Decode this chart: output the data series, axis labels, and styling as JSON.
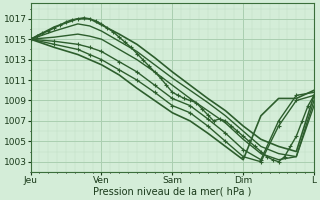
{
  "bg_color": "#d4edd8",
  "plot_bg_color": "#d4edd8",
  "grid_color_major": "#aacfb0",
  "grid_color_minor": "#c0dfc5",
  "line_color": "#2d5e2d",
  "xlabel": "Pression niveau de la mer( hPa )",
  "xlim": [
    0,
    96
  ],
  "ylim": [
    1002,
    1018.5
  ],
  "yticks": [
    1003,
    1005,
    1007,
    1009,
    1011,
    1013,
    1015,
    1017
  ],
  "xtick_labels": [
    "Jeu",
    "Ven",
    "Sam",
    "Dim",
    "L"
  ],
  "xtick_positions": [
    0,
    24,
    48,
    72,
    96
  ],
  "lines": [
    {
      "x": [
        0,
        2,
        4,
        6,
        8,
        10,
        12,
        14,
        16,
        18,
        20,
        22,
        24,
        26,
        28,
        30,
        32,
        34,
        36,
        38,
        40,
        42,
        44,
        46,
        48,
        50,
        52,
        54,
        56,
        58,
        60,
        62,
        64,
        66,
        68,
        70,
        72,
        74,
        76,
        78,
        80,
        82,
        84,
        86,
        88,
        90,
        92,
        94,
        96
      ],
      "y": [
        1015.0,
        1015.3,
        1015.6,
        1015.8,
        1016.1,
        1016.4,
        1016.7,
        1016.9,
        1017.0,
        1017.1,
        1017.0,
        1016.8,
        1016.5,
        1016.1,
        1015.7,
        1015.2,
        1014.7,
        1014.2,
        1013.6,
        1013.0,
        1012.4,
        1011.8,
        1011.2,
        1010.5,
        1009.8,
        1009.5,
        1009.2,
        1009.0,
        1008.8,
        1008.2,
        1007.6,
        1007.0,
        1007.2,
        1007.0,
        1006.5,
        1006.0,
        1005.5,
        1005.0,
        1004.5,
        1004.0,
        1003.5,
        1003.2,
        1003.0,
        1003.5,
        1004.5,
        1005.5,
        1007.0,
        1008.5,
        1009.5
      ],
      "marker": "+",
      "markersize": 3.5,
      "lw": 1.0
    },
    {
      "x": [
        0,
        8,
        16,
        20,
        24,
        30,
        36,
        42,
        48,
        54,
        60,
        66,
        72,
        78,
        84,
        90,
        96
      ],
      "y": [
        1015.0,
        1016.2,
        1017.0,
        1017.0,
        1016.4,
        1015.5,
        1014.5,
        1013.2,
        1011.8,
        1010.5,
        1009.2,
        1008.0,
        1006.5,
        1005.2,
        1004.5,
        1004.0,
        1009.5
      ],
      "marker": "",
      "markersize": 0,
      "lw": 1.2
    },
    {
      "x": [
        0,
        8,
        16,
        20,
        24,
        30,
        36,
        42,
        48,
        54,
        60,
        66,
        72,
        78,
        84,
        90,
        96
      ],
      "y": [
        1015.0,
        1015.8,
        1016.5,
        1016.3,
        1015.8,
        1014.8,
        1013.8,
        1012.5,
        1011.2,
        1010.0,
        1008.8,
        1007.5,
        1006.0,
        1004.5,
        1003.8,
        1003.5,
        1009.0
      ],
      "marker": "",
      "markersize": 0,
      "lw": 1.0
    },
    {
      "x": [
        0,
        8,
        16,
        20,
        24,
        30,
        36,
        42,
        48,
        54,
        60,
        66,
        72,
        78,
        84,
        90,
        96
      ],
      "y": [
        1015.0,
        1015.2,
        1015.5,
        1015.3,
        1015.0,
        1014.0,
        1013.0,
        1011.8,
        1010.5,
        1009.2,
        1008.0,
        1006.8,
        1005.2,
        1003.8,
        1003.2,
        1003.5,
        1008.5
      ],
      "marker": "",
      "markersize": 0,
      "lw": 1.0
    },
    {
      "x": [
        0,
        8,
        16,
        20,
        24,
        30,
        36,
        42,
        48,
        54,
        60,
        66,
        72,
        78,
        84,
        90,
        96
      ],
      "y": [
        1015.0,
        1014.8,
        1014.5,
        1014.2,
        1013.8,
        1012.8,
        1011.8,
        1010.5,
        1009.2,
        1008.5,
        1007.2,
        1005.8,
        1004.2,
        1003.2,
        1007.0,
        1009.5,
        1009.8
      ],
      "marker": "+",
      "markersize": 3.5,
      "lw": 1.0
    },
    {
      "x": [
        0,
        8,
        16,
        20,
        24,
        30,
        36,
        42,
        48,
        54,
        60,
        66,
        72,
        78,
        84,
        90,
        96
      ],
      "y": [
        1015.0,
        1014.5,
        1014.0,
        1013.5,
        1013.0,
        1012.0,
        1011.0,
        1009.8,
        1008.5,
        1007.8,
        1006.5,
        1005.0,
        1003.5,
        1003.0,
        1006.5,
        1009.0,
        1009.5
      ],
      "marker": "+",
      "markersize": 3.5,
      "lw": 1.0
    },
    {
      "x": [
        0,
        8,
        16,
        20,
        24,
        30,
        36,
        42,
        48,
        54,
        60,
        66,
        72,
        78,
        84,
        90,
        96
      ],
      "y": [
        1015.0,
        1014.2,
        1013.5,
        1013.0,
        1012.5,
        1011.5,
        1010.2,
        1009.0,
        1007.8,
        1007.0,
        1005.8,
        1004.5,
        1003.2,
        1007.5,
        1009.2,
        1009.2,
        1010.0
      ],
      "marker": "",
      "markersize": 0,
      "lw": 1.2
    }
  ]
}
